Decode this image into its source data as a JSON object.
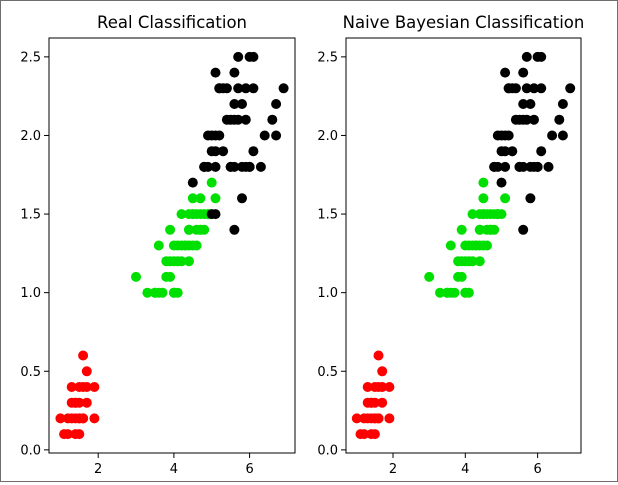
{
  "chart_data": [
    {
      "type": "scatter",
      "title": "Real Classification",
      "xlabel": "",
      "ylabel": "",
      "xlim": [
        0.7,
        7.2
      ],
      "ylim": [
        -0.02,
        2.62
      ],
      "xticks": [
        2,
        4,
        6
      ],
      "yticks": [
        0.0,
        0.5,
        1.0,
        1.5,
        2.0,
        2.5
      ],
      "grid": false,
      "series": [
        {
          "color": "#ff0000",
          "points": [
            [
              1.4,
              0.2
            ],
            [
              1.3,
              0.2
            ],
            [
              1.5,
              0.2
            ],
            [
              1.7,
              0.4
            ],
            [
              1.4,
              0.3
            ],
            [
              1.5,
              0.1
            ],
            [
              1.6,
              0.2
            ],
            [
              1.1,
              0.1
            ],
            [
              1.2,
              0.2
            ],
            [
              1.3,
              0.4
            ],
            [
              1.7,
              0.3
            ],
            [
              1.5,
              0.3
            ],
            [
              1.0,
              0.2
            ],
            [
              1.7,
              0.5
            ],
            [
              1.9,
              0.2
            ],
            [
              1.6,
              0.4
            ],
            [
              1.5,
              0.4
            ],
            [
              1.6,
              0.6
            ],
            [
              1.9,
              0.4
            ],
            [
              1.4,
              0.1
            ],
            [
              1.2,
              0.1
            ],
            [
              1.5,
              0.2
            ],
            [
              1.6,
              0.2
            ],
            [
              1.4,
              0.3
            ],
            [
              1.3,
              0.3
            ]
          ]
        },
        {
          "color": "#00e000",
          "points": [
            [
              4.7,
              1.4
            ],
            [
              4.5,
              1.5
            ],
            [
              4.9,
              1.5
            ],
            [
              4.0,
              1.3
            ],
            [
              4.6,
              1.5
            ],
            [
              3.3,
              1.0
            ],
            [
              3.9,
              1.4
            ],
            [
              3.5,
              1.0
            ],
            [
              4.2,
              1.5
            ],
            [
              4.0,
              1.0
            ],
            [
              4.7,
              1.4
            ],
            [
              3.6,
              1.3
            ],
            [
              4.4,
              1.4
            ],
            [
              4.1,
              1.0
            ],
            [
              4.5,
              1.5
            ],
            [
              3.9,
              1.1
            ],
            [
              4.8,
              1.8
            ],
            [
              4.9,
              1.5
            ],
            [
              4.3,
              1.3
            ],
            [
              4.4,
              1.4
            ],
            [
              5.0,
              1.7
            ],
            [
              3.8,
              1.1
            ],
            [
              3.7,
              1.0
            ],
            [
              5.1,
              1.6
            ],
            [
              4.5,
              1.6
            ],
            [
              4.7,
              1.5
            ],
            [
              4.4,
              1.3
            ],
            [
              4.1,
              1.3
            ],
            [
              4.0,
              1.2
            ],
            [
              4.6,
              1.4
            ],
            [
              3.0,
              1.1
            ],
            [
              4.2,
              1.2
            ],
            [
              4.3,
              1.3
            ],
            [
              4.6,
              1.3
            ],
            [
              3.9,
              1.2
            ],
            [
              4.8,
              1.4
            ],
            [
              4.2,
              1.3
            ],
            [
              5.0,
              1.5
            ],
            [
              4.1,
              1.2
            ],
            [
              4.4,
              1.2
            ],
            [
              4.5,
              1.3
            ],
            [
              3.8,
              1.2
            ],
            [
              4.0,
              1.0
            ],
            [
              4.9,
              1.5
            ],
            [
              4.7,
              1.6
            ],
            [
              4.4,
              1.5
            ],
            [
              3.6,
              1.0
            ],
            [
              3.5,
              1.0
            ],
            [
              4.8,
              1.5
            ]
          ]
        },
        {
          "color": "#000000",
          "points": [
            [
              6.0,
              2.5
            ],
            [
              5.1,
              1.9
            ],
            [
              5.9,
              2.1
            ],
            [
              5.6,
              1.8
            ],
            [
              5.8,
              2.2
            ],
            [
              6.6,
              2.1
            ],
            [
              4.5,
              1.7
            ],
            [
              6.3,
              1.8
            ],
            [
              6.1,
              2.5
            ],
            [
              5.1,
              2.0
            ],
            [
              5.3,
              1.9
            ],
            [
              5.5,
              2.1
            ],
            [
              5.0,
              2.0
            ],
            [
              5.1,
              2.4
            ],
            [
              5.3,
              2.3
            ],
            [
              5.5,
              1.8
            ],
            [
              6.7,
              2.2
            ],
            [
              6.9,
              2.3
            ],
            [
              5.0,
              1.5
            ],
            [
              5.7,
              2.3
            ],
            [
              4.9,
              2.0
            ],
            [
              6.7,
              2.0
            ],
            [
              4.9,
              1.8
            ],
            [
              5.7,
              2.1
            ],
            [
              6.0,
              1.8
            ],
            [
              4.8,
              1.8
            ],
            [
              5.8,
              1.6
            ],
            [
              6.1,
              1.9
            ],
            [
              6.4,
              2.0
            ],
            [
              5.6,
              2.2
            ],
            [
              5.1,
              1.5
            ],
            [
              5.6,
              1.4
            ],
            [
              6.1,
              2.3
            ],
            [
              5.6,
              2.4
            ],
            [
              5.5,
              1.8
            ],
            [
              5.4,
              2.1
            ],
            [
              5.2,
              2.3
            ],
            [
              5.0,
              1.9
            ],
            [
              5.2,
              2.0
            ],
            [
              5.4,
              2.3
            ],
            [
              5.1,
              1.8
            ],
            [
              5.9,
              2.3
            ],
            [
              5.7,
              2.5
            ],
            [
              5.2,
              2.3
            ],
            [
              5.6,
              2.1
            ],
            [
              4.8,
              1.8
            ],
            [
              5.8,
              1.8
            ],
            [
              6.0,
              1.8
            ],
            [
              5.9,
              1.8
            ]
          ]
        }
      ]
    },
    {
      "type": "scatter",
      "title": "Naive Bayesian Classification",
      "xlabel": "",
      "ylabel": "",
      "xlim": [
        0.7,
        7.2
      ],
      "ylim": [
        -0.02,
        2.62
      ],
      "xticks": [
        2,
        4,
        6
      ],
      "yticks": [
        0.0,
        0.5,
        1.0,
        1.5,
        2.0,
        2.5
      ],
      "grid": false,
      "series": [
        {
          "color": "#ff0000",
          "points": [
            [
              1.4,
              0.2
            ],
            [
              1.3,
              0.2
            ],
            [
              1.5,
              0.2
            ],
            [
              1.7,
              0.4
            ],
            [
              1.4,
              0.3
            ],
            [
              1.5,
              0.1
            ],
            [
              1.6,
              0.2
            ],
            [
              1.1,
              0.1
            ],
            [
              1.2,
              0.2
            ],
            [
              1.3,
              0.4
            ],
            [
              1.7,
              0.3
            ],
            [
              1.5,
              0.3
            ],
            [
              1.0,
              0.2
            ],
            [
              1.7,
              0.5
            ],
            [
              1.9,
              0.2
            ],
            [
              1.6,
              0.4
            ],
            [
              1.5,
              0.4
            ],
            [
              1.6,
              0.6
            ],
            [
              1.9,
              0.4
            ],
            [
              1.4,
              0.1
            ],
            [
              1.2,
              0.1
            ],
            [
              1.5,
              0.2
            ],
            [
              1.6,
              0.2
            ],
            [
              1.4,
              0.3
            ],
            [
              1.3,
              0.3
            ]
          ]
        },
        {
          "color": "#00e000",
          "points": [
            [
              4.7,
              1.4
            ],
            [
              4.5,
              1.5
            ],
            [
              4.9,
              1.5
            ],
            [
              4.0,
              1.3
            ],
            [
              4.6,
              1.5
            ],
            [
              3.3,
              1.0
            ],
            [
              3.9,
              1.4
            ],
            [
              3.5,
              1.0
            ],
            [
              4.2,
              1.5
            ],
            [
              4.0,
              1.0
            ],
            [
              4.7,
              1.4
            ],
            [
              3.6,
              1.3
            ],
            [
              4.4,
              1.4
            ],
            [
              4.1,
              1.0
            ],
            [
              4.5,
              1.5
            ],
            [
              3.9,
              1.1
            ],
            [
              4.9,
              1.5
            ],
            [
              4.3,
              1.3
            ],
            [
              4.4,
              1.4
            ],
            [
              5.1,
              1.6
            ],
            [
              3.8,
              1.1
            ],
            [
              3.7,
              1.0
            ],
            [
              4.5,
              1.6
            ],
            [
              4.7,
              1.5
            ],
            [
              4.4,
              1.3
            ],
            [
              4.1,
              1.3
            ],
            [
              4.0,
              1.2
            ],
            [
              4.6,
              1.4
            ],
            [
              3.0,
              1.1
            ],
            [
              4.2,
              1.2
            ],
            [
              4.3,
              1.3
            ],
            [
              4.6,
              1.3
            ],
            [
              3.9,
              1.2
            ],
            [
              4.8,
              1.4
            ],
            [
              4.2,
              1.3
            ],
            [
              5.0,
              1.5
            ],
            [
              4.1,
              1.2
            ],
            [
              4.4,
              1.2
            ],
            [
              4.5,
              1.3
            ],
            [
              3.8,
              1.2
            ],
            [
              4.0,
              1.0
            ],
            [
              4.9,
              1.5
            ],
            [
              4.5,
              1.7
            ],
            [
              4.4,
              1.5
            ],
            [
              3.6,
              1.0
            ],
            [
              3.5,
              1.0
            ],
            [
              4.8,
              1.5
            ]
          ]
        },
        {
          "color": "#000000",
          "points": [
            [
              6.0,
              2.5
            ],
            [
              5.1,
              1.9
            ],
            [
              5.9,
              2.1
            ],
            [
              5.6,
              1.8
            ],
            [
              5.8,
              2.2
            ],
            [
              6.6,
              2.1
            ],
            [
              6.3,
              1.8
            ],
            [
              6.1,
              2.5
            ],
            [
              5.1,
              2.0
            ],
            [
              5.3,
              1.9
            ],
            [
              5.5,
              2.1
            ],
            [
              5.0,
              2.0
            ],
            [
              5.1,
              2.4
            ],
            [
              5.3,
              2.3
            ],
            [
              5.5,
              1.8
            ],
            [
              6.7,
              2.2
            ],
            [
              6.9,
              2.3
            ],
            [
              5.7,
              2.3
            ],
            [
              4.9,
              2.0
            ],
            [
              6.7,
              2.0
            ],
            [
              4.9,
              1.8
            ],
            [
              5.7,
              2.1
            ],
            [
              6.0,
              1.8
            ],
            [
              4.8,
              1.8
            ],
            [
              5.8,
              1.6
            ],
            [
              6.1,
              1.9
            ],
            [
              6.4,
              2.0
            ],
            [
              5.6,
              2.2
            ],
            [
              5.6,
              1.4
            ],
            [
              6.1,
              2.3
            ],
            [
              5.6,
              2.4
            ],
            [
              5.5,
              1.8
            ],
            [
              5.4,
              2.1
            ],
            [
              5.2,
              2.3
            ],
            [
              5.0,
              1.9
            ],
            [
              5.2,
              2.0
            ],
            [
              5.4,
              2.3
            ],
            [
              5.1,
              1.8
            ],
            [
              5.9,
              2.3
            ],
            [
              5.7,
              2.5
            ],
            [
              5.2,
              2.3
            ],
            [
              5.6,
              2.1
            ],
            [
              4.8,
              1.8
            ],
            [
              5.8,
              1.8
            ],
            [
              6.0,
              1.8
            ],
            [
              5.9,
              1.8
            ],
            [
              5.0,
              1.7
            ]
          ]
        }
      ]
    }
  ]
}
